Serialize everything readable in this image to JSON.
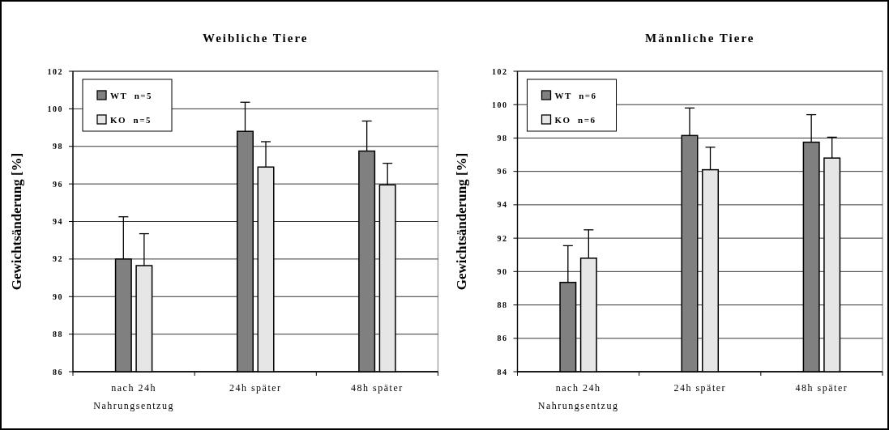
{
  "chart_data": [
    {
      "type": "bar",
      "title": "Weibliche Tiere",
      "ylabel": "Gewichtsänderung [%]",
      "categories": [
        "nach 24h\nNahrungsentzug",
        "24h später",
        "48h später"
      ],
      "series": [
        {
          "name": "WT  n=5",
          "color": "#808080",
          "values": [
            92.0,
            98.8,
            97.75
          ],
          "errors": [
            [
              92.0,
              94.25
            ],
            [
              98.8,
              100.35
            ],
            [
              97.75,
              99.35
            ]
          ]
        },
        {
          "name": "KO  n=5",
          "color": "#e6e6e6",
          "values": [
            91.65,
            96.9,
            95.95
          ],
          "errors": [
            [
              91.65,
              93.35
            ],
            [
              96.9,
              98.25
            ],
            [
              95.95,
              97.1
            ]
          ]
        }
      ],
      "ylim": [
        86,
        102
      ],
      "yticks": [
        86,
        88,
        90,
        92,
        94,
        96,
        98,
        100,
        102
      ],
      "grid": "y",
      "legend": "top left"
    },
    {
      "type": "bar",
      "title": "Männliche Tiere",
      "ylabel": "Gewichtsänderung [%]",
      "categories": [
        "nach 24h\nNahrungsentzug",
        "24h später",
        "48h später"
      ],
      "series": [
        {
          "name": "WT  n=6",
          "color": "#808080",
          "values": [
            89.35,
            98.15,
            97.75
          ],
          "errors": [
            [
              89.35,
              91.55
            ],
            [
              98.15,
              99.8
            ],
            [
              97.75,
              99.4
            ]
          ]
        },
        {
          "name": "KO  n=6",
          "color": "#e6e6e6",
          "values": [
            90.8,
            96.1,
            96.8
          ],
          "errors": [
            [
              90.8,
              92.5
            ],
            [
              96.1,
              97.45
            ],
            [
              96.8,
              98.05
            ]
          ]
        }
      ],
      "ylim": [
        84,
        102
      ],
      "yticks": [
        84,
        86,
        88,
        90,
        92,
        94,
        96,
        98,
        100,
        102
      ],
      "grid": "y",
      "legend": "top left"
    }
  ]
}
